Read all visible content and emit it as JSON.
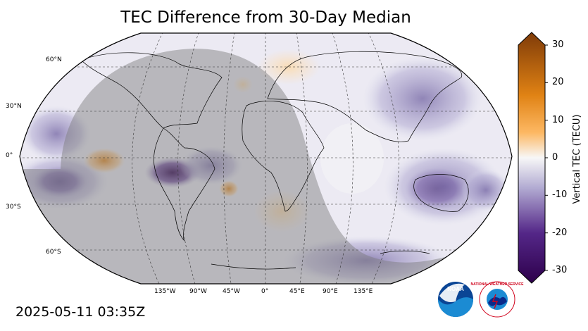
{
  "title": "TEC Difference from 30-Day Median",
  "timestamp": "2025-05-11 03:35Z",
  "map": {
    "projection": "robinson",
    "lat_labels": [
      "60°N",
      "30°N",
      "0°",
      "30°S",
      "60°S"
    ],
    "lon_labels": [
      "135°W",
      "90°W",
      "45°W",
      "0°",
      "45°E",
      "90°E",
      "135°E"
    ],
    "night_shading": true
  },
  "colorbar": {
    "label": "Vertical TEC (TECU)",
    "ticks": [
      "30",
      "20",
      "10",
      "0",
      "-10",
      "-20",
      "-30"
    ],
    "range": [
      -30,
      30
    ],
    "colors": {
      "max": "#7f3b08",
      "high": "#e08214",
      "mid_high": "#fdb863",
      "zero": "#f7f7f7",
      "mid_low": "#b2abd2",
      "low": "#542788",
      "min": "#2d004b"
    }
  },
  "logos": {
    "noaa_text": "NOAA",
    "nws_text": "NATIONAL WEATHER SERVICE"
  }
}
